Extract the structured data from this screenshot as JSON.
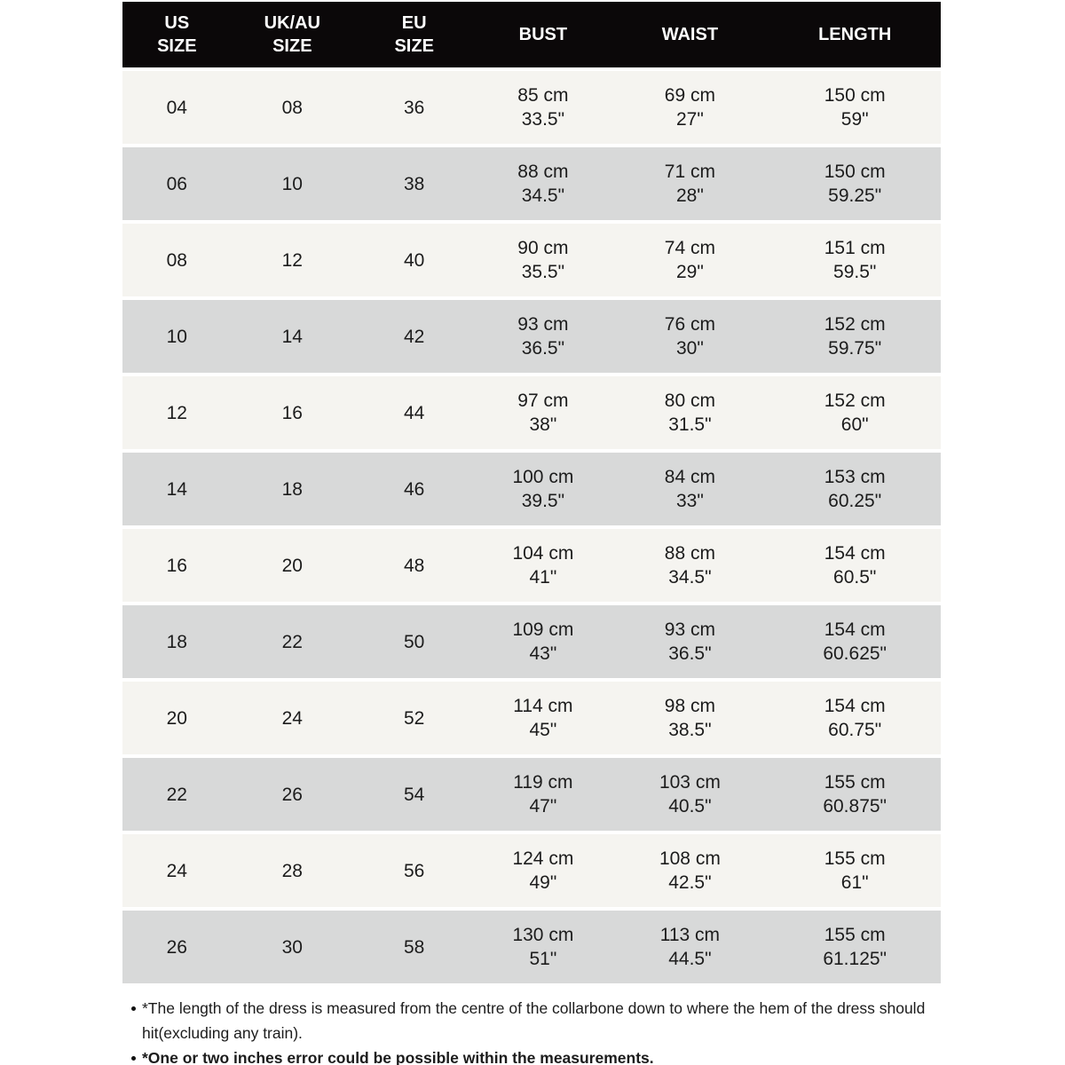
{
  "table": {
    "columns": [
      {
        "id": "us-size",
        "label": "US\nSIZE"
      },
      {
        "id": "ukau-size",
        "label": "UK/AU\nSIZE"
      },
      {
        "id": "eu-size",
        "label": "EU\nSIZE"
      },
      {
        "id": "bust",
        "label": "BUST"
      },
      {
        "id": "waist",
        "label": "WAIST"
      },
      {
        "id": "length",
        "label": "LENGTH"
      }
    ],
    "rows": [
      {
        "cells": [
          "04",
          "08",
          "36",
          "85 cm\n33.5\"",
          "69 cm\n27\"",
          "150 cm\n59\""
        ]
      },
      {
        "cells": [
          "06",
          "10",
          "38",
          "88 cm\n34.5\"",
          "71 cm\n28\"",
          "150 cm\n59.25\""
        ]
      },
      {
        "cells": [
          "08",
          "12",
          "40",
          "90 cm\n35.5\"",
          "74 cm\n29\"",
          "151 cm\n59.5\""
        ]
      },
      {
        "cells": [
          "10",
          "14",
          "42",
          "93 cm\n36.5\"",
          "76 cm\n30\"",
          "152 cm\n59.75\""
        ]
      },
      {
        "cells": [
          "12",
          "16",
          "44",
          "97 cm\n38\"",
          "80 cm\n31.5\"",
          "152 cm\n60\""
        ]
      },
      {
        "cells": [
          "14",
          "18",
          "46",
          "100 cm\n39.5\"",
          "84 cm\n33\"",
          "153 cm\n60.25\""
        ]
      },
      {
        "cells": [
          "16",
          "20",
          "48",
          "104 cm\n41\"",
          "88 cm\n34.5\"",
          "154 cm\n60.5\""
        ]
      },
      {
        "cells": [
          "18",
          "22",
          "50",
          "109 cm\n43\"",
          "93 cm\n36.5\"",
          "154 cm\n60.625\""
        ]
      },
      {
        "cells": [
          "20",
          "24",
          "52",
          "114 cm\n45\"",
          "98 cm\n38.5\"",
          "154 cm\n60.75\""
        ]
      },
      {
        "cells": [
          "22",
          "26",
          "54",
          "119 cm\n47\"",
          "103 cm\n40.5\"",
          "155 cm\n60.875\""
        ]
      },
      {
        "cells": [
          "24",
          "28",
          "56",
          "124 cm\n49\"",
          "108 cm\n42.5\"",
          "155 cm\n61\""
        ]
      },
      {
        "cells": [
          "26",
          "30",
          "58",
          "130 cm\n51\"",
          "113 cm\n44.5\"",
          "155 cm\n61.125\""
        ]
      }
    ]
  },
  "notes": [
    {
      "text": "*The length of the dress is measured from the centre of the collarbone down to where the hem of the dress should hit(excluding any train).",
      "bold": false
    },
    {
      "text": "*One or two inches error could be possible within the measurements.",
      "bold": true
    }
  ],
  "colors": {
    "header_bg": "#0b0809",
    "header_text": "#ffffff",
    "row_light": "#f5f4f0",
    "row_dark": "#d8d9d9",
    "text": "#1c1c1c"
  }
}
